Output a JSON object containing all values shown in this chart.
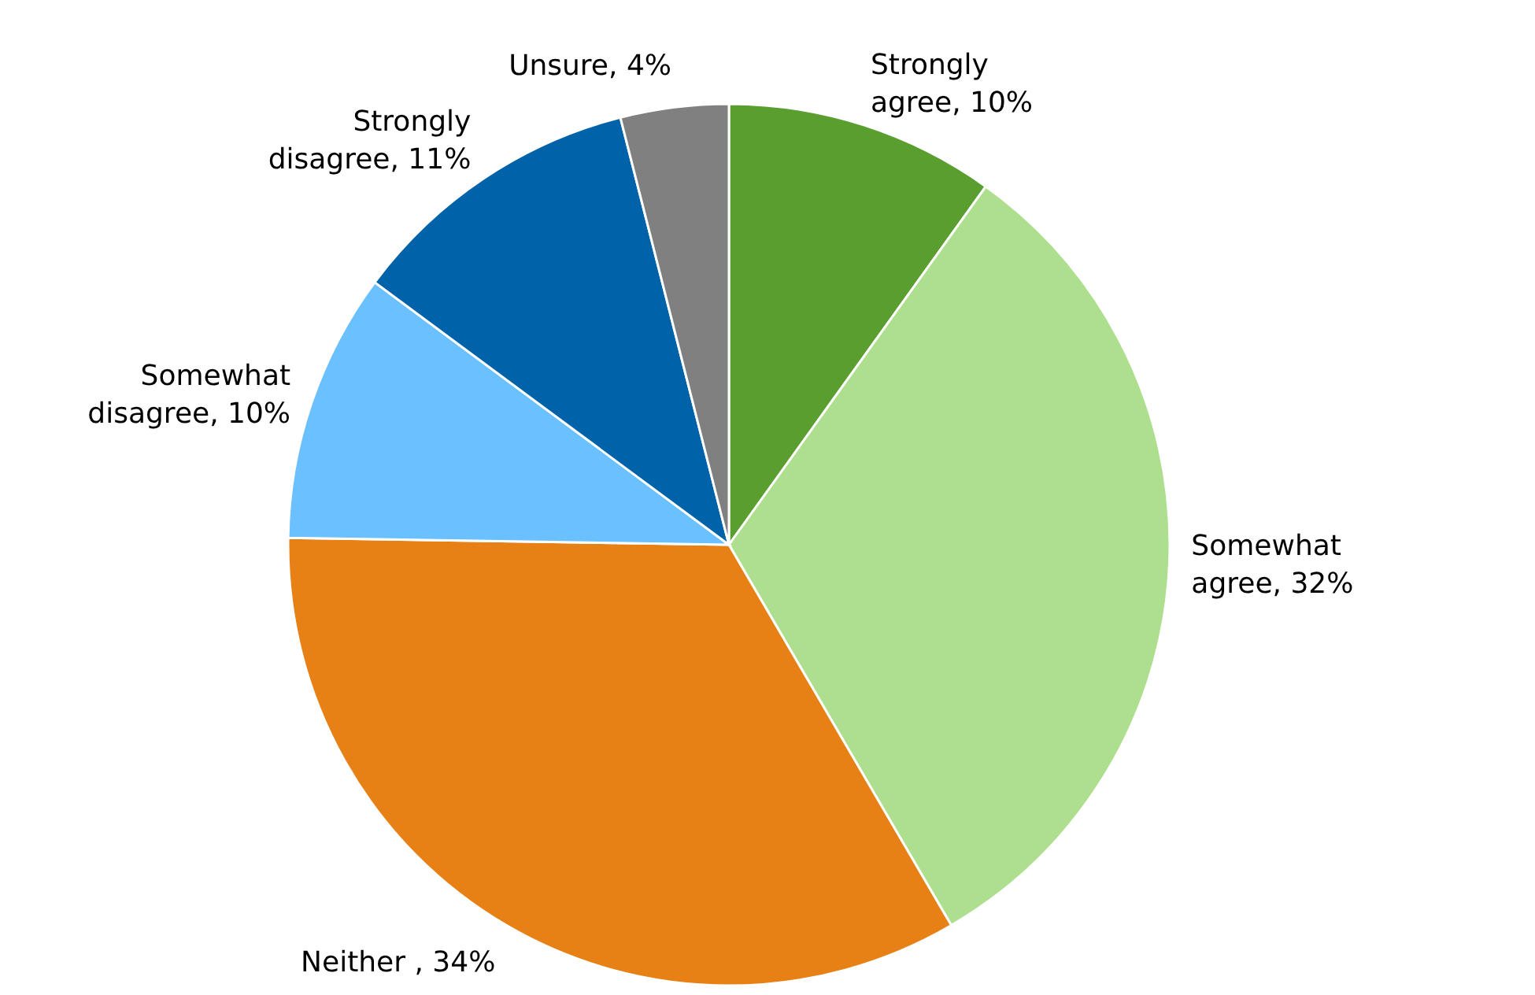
{
  "chart_data": {
    "type": "pie",
    "categories": [
      "Strongly agree",
      "Somewhat agree",
      "Neither ",
      "Somewhat disagree",
      "Strongly disagree",
      "Unsure"
    ],
    "values": [
      10,
      32,
      34,
      10,
      11,
      4
    ],
    "value_labels": [
      "10%",
      "32%",
      "34%",
      "10%",
      "11%",
      "4%"
    ],
    "colors": [
      "#5a9e2f",
      "#addf8e",
      "#e88115",
      "#6bc0ff",
      "#0062a9",
      "#808080"
    ]
  }
}
